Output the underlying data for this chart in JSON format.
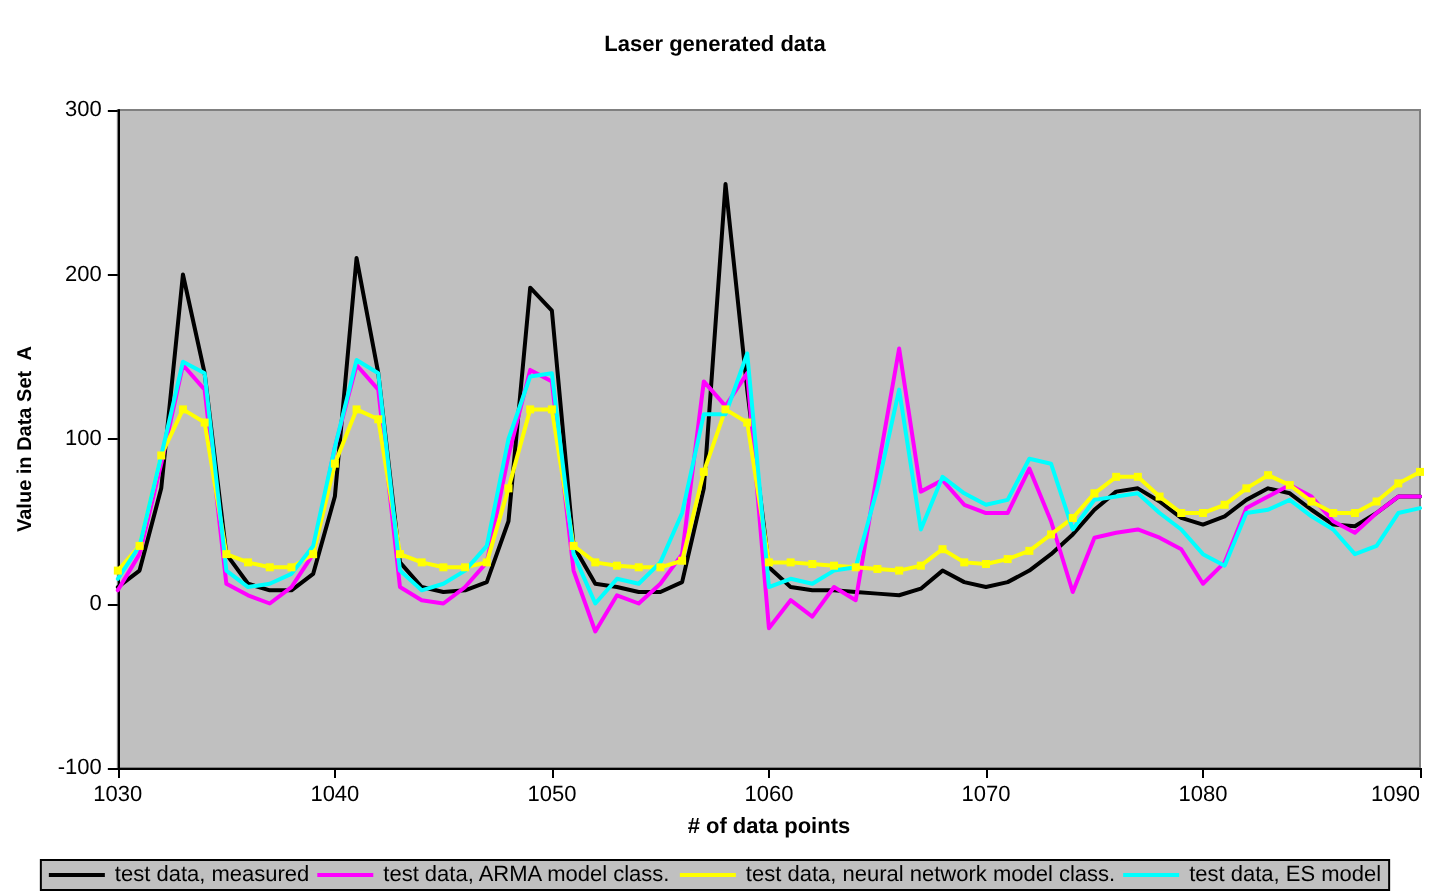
{
  "chart_data": {
    "type": "line",
    "title": "Laser generated data",
    "xlabel": "# of data points",
    "ylabel": "Value in Data Set  A",
    "x": [
      1030,
      1031,
      1032,
      1033,
      1034,
      1035,
      1036,
      1037,
      1038,
      1039,
      1040,
      1041,
      1042,
      1043,
      1044,
      1045,
      1046,
      1047,
      1048,
      1049,
      1050,
      1051,
      1052,
      1053,
      1054,
      1055,
      1056,
      1057,
      1058,
      1059,
      1060,
      1061,
      1062,
      1063,
      1064,
      1065,
      1066,
      1067,
      1068,
      1069,
      1070,
      1071,
      1072,
      1073,
      1074,
      1075,
      1076,
      1077,
      1078,
      1079,
      1080,
      1081,
      1082,
      1083,
      1084,
      1085,
      1086,
      1087,
      1088,
      1089,
      1090
    ],
    "series": [
      {
        "name": "test data, measured",
        "color": "#000000",
        "values": [
          10,
          20,
          70,
          200,
          140,
          30,
          12,
          8,
          8,
          18,
          65,
          210,
          140,
          25,
          10,
          7,
          8,
          13,
          50,
          192,
          178,
          35,
          12,
          10,
          7,
          7,
          13,
          70,
          255,
          130,
          22,
          10,
          8,
          8,
          7,
          6,
          5,
          9,
          20,
          13,
          10,
          13,
          20,
          30,
          42,
          57,
          68,
          70,
          62,
          52,
          48,
          53,
          63,
          70,
          67,
          57,
          48,
          47,
          55,
          65,
          65
        ]
      },
      {
        "name": "test data, ARMA model class.",
        "color": "#ff00ff",
        "values": [
          8,
          30,
          85,
          145,
          130,
          12,
          5,
          0,
          10,
          30,
          95,
          145,
          130,
          10,
          2,
          0,
          10,
          25,
          90,
          142,
          135,
          20,
          -17,
          5,
          0,
          12,
          30,
          135,
          120,
          140,
          -15,
          2,
          -8,
          10,
          2,
          80,
          155,
          68,
          75,
          60,
          55,
          55,
          82,
          50,
          7,
          40,
          43,
          45,
          40,
          33,
          12,
          25,
          58,
          65,
          72,
          65,
          50,
          43,
          55,
          65,
          65
        ]
      },
      {
        "name": "test data, neural network model class.",
        "color": "#ffff00",
        "marker": "square",
        "values": [
          20,
          35,
          90,
          118,
          110,
          30,
          25,
          22,
          22,
          30,
          85,
          118,
          112,
          30,
          25,
          22,
          22,
          25,
          70,
          118,
          118,
          35,
          25,
          23,
          22,
          22,
          26,
          80,
          118,
          110,
          25,
          25,
          24,
          23,
          22,
          21,
          20,
          23,
          33,
          25,
          24,
          27,
          32,
          42,
          52,
          67,
          77,
          77,
          65,
          55,
          55,
          60,
          70,
          78,
          72,
          62,
          55,
          55,
          62,
          73,
          80
        ]
      },
      {
        "name": "test data, ES model",
        "color": "#00ffff",
        "values": [
          15,
          35,
          90,
          147,
          140,
          20,
          10,
          12,
          18,
          35,
          95,
          148,
          140,
          20,
          8,
          12,
          20,
          35,
          100,
          138,
          140,
          30,
          0,
          15,
          12,
          25,
          55,
          115,
          115,
          152,
          10,
          15,
          12,
          20,
          22,
          70,
          130,
          45,
          77,
          67,
          60,
          63,
          88,
          85,
          45,
          63,
          65,
          67,
          55,
          45,
          30,
          23,
          55,
          57,
          63,
          53,
          45,
          30,
          35,
          55,
          58
        ]
      }
    ],
    "xlim": [
      1030,
      1090
    ],
    "xticks": [
      1030,
      1040,
      1050,
      1060,
      1070,
      1080,
      1090
    ],
    "ylim": [
      -100,
      300
    ],
    "yticks": [
      -100,
      0,
      100,
      200,
      300
    ],
    "grid": false,
    "legend": "bottom",
    "marker": "none",
    "line_style": "solid"
  }
}
